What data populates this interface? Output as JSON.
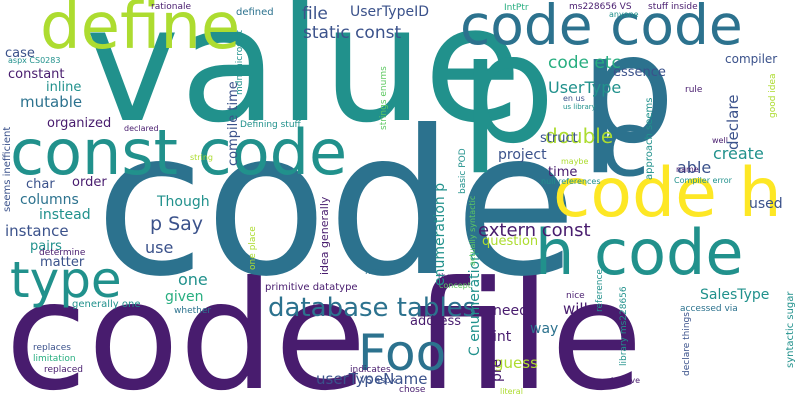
{
  "palette": {
    "dark_purple": "#481c6e",
    "indigo": "#3b528b",
    "blue": "#2c728e",
    "teal": "#21918c",
    "green": "#28ae80",
    "light_green": "#5ec962",
    "yellow_green": "#addc30",
    "yellow": "#fde725"
  },
  "words": [
    {
      "text": "code file",
      "color": "#481c6e",
      "orient": "h"
    },
    {
      "text": "code",
      "color": "#2c728e",
      "orient": "h"
    },
    {
      "text": "value",
      "color": "#21918c",
      "orient": "h"
    },
    {
      "text": "p",
      "color": "#21918c",
      "orient": "h"
    },
    {
      "text": "p",
      "color": "#2c728e",
      "orient": "h"
    },
    {
      "text": "const code",
      "color": "#21918c",
      "orient": "h"
    },
    {
      "text": "code code",
      "color": "#2c728e",
      "orient": "h"
    },
    {
      "text": "define",
      "color": "#addc30",
      "orient": "h"
    },
    {
      "text": "c",
      "color": "#2c728e",
      "orient": "h"
    },
    {
      "text": "code h",
      "color": "#fde725",
      "orient": "h"
    },
    {
      "text": "h code",
      "color": "#21918c",
      "orient": "h"
    },
    {
      "text": "type",
      "color": "#21918c",
      "orient": "h"
    },
    {
      "text": "Foo",
      "color": "#2c728e",
      "orient": "h"
    },
    {
      "text": "database tables",
      "color": "#2c728e",
      "orient": "h"
    },
    {
      "text": "extern const",
      "color": "#481c6e",
      "orient": "h"
    },
    {
      "text": "static const",
      "color": "#3b528b",
      "orient": "h"
    },
    {
      "text": "file",
      "color": "#3b528b",
      "orient": "h"
    },
    {
      "text": "UserTypeID",
      "color": "#3b528b",
      "orient": "h"
    },
    {
      "text": "code etc",
      "color": "#28ae80",
      "orient": "h"
    },
    {
      "text": "UserType",
      "color": "#21918c",
      "orient": "h"
    },
    {
      "text": "double",
      "color": "#addc30",
      "orient": "h"
    },
    {
      "text": "create",
      "color": "#21918c",
      "orient": "h"
    },
    {
      "text": "able",
      "color": "#3b528b",
      "orient": "h"
    },
    {
      "text": "p Say",
      "color": "#3b528b",
      "orient": "h"
    },
    {
      "text": "Though",
      "color": "#21918c",
      "orient": "h"
    },
    {
      "text": "use",
      "color": "#3b528b",
      "orient": "h"
    },
    {
      "text": "one",
      "color": "#21918c",
      "orient": "h"
    },
    {
      "text": "given",
      "color": "#28ae80",
      "orient": "h"
    },
    {
      "text": "SalesType",
      "color": "#21918c",
      "orient": "h"
    },
    {
      "text": "userTypeName",
      "color": "#3b528b",
      "orient": "h"
    },
    {
      "text": "address",
      "color": "#481c6e",
      "orient": "h"
    },
    {
      "text": "primitive datatype",
      "color": "#481c6e",
      "orient": "h"
    },
    {
      "text": "need",
      "color": "#481c6e",
      "orient": "h"
    },
    {
      "text": "int",
      "color": "#481c6e",
      "orient": "h"
    },
    {
      "text": "will",
      "color": "#481c6e",
      "orient": "h"
    },
    {
      "text": "way",
      "color": "#2c728e",
      "orient": "h"
    },
    {
      "text": "guess",
      "color": "#addc30",
      "orient": "h"
    },
    {
      "text": "question",
      "color": "#addc30",
      "orient": "h"
    },
    {
      "text": "project",
      "color": "#3b528b",
      "orient": "h"
    },
    {
      "text": "time",
      "color": "#481c6e",
      "orient": "h"
    },
    {
      "text": "struct",
      "color": "#3b528b",
      "orient": "h"
    },
    {
      "text": "mutable",
      "color": "#2c728e",
      "orient": "h"
    },
    {
      "text": "constant",
      "color": "#481c6e",
      "orient": "h"
    },
    {
      "text": "inline",
      "color": "#21918c",
      "orient": "h"
    },
    {
      "text": "organized",
      "color": "#481c6e",
      "orient": "h"
    },
    {
      "text": "char",
      "color": "#3b528b",
      "orient": "h"
    },
    {
      "text": "order",
      "color": "#481c6e",
      "orient": "h"
    },
    {
      "text": "columns",
      "color": "#2c728e",
      "orient": "h"
    },
    {
      "text": "instead",
      "color": "#21918c",
      "orient": "h"
    },
    {
      "text": "instance",
      "color": "#3b528b",
      "orient": "h"
    },
    {
      "text": "pairs",
      "color": "#21918c",
      "orient": "h"
    },
    {
      "text": "matter",
      "color": "#3b528b",
      "orient": "h"
    },
    {
      "text": "case",
      "color": "#3b528b",
      "orient": "h"
    },
    {
      "text": "used",
      "color": "#3b528b",
      "orient": "h"
    },
    {
      "text": "essence",
      "color": "#3b528b",
      "orient": "h"
    },
    {
      "text": "compiler",
      "color": "#3b528b",
      "orient": "h"
    },
    {
      "text": "determine",
      "color": "#481c6e",
      "orient": "h"
    },
    {
      "text": "generally one",
      "color": "#21918c",
      "orient": "h"
    },
    {
      "text": "whether",
      "color": "#2c728e",
      "orient": "h"
    },
    {
      "text": "replaces",
      "color": "#3b528b",
      "orient": "h"
    },
    {
      "text": "limitation",
      "color": "#28ae80",
      "orient": "h"
    },
    {
      "text": "replaced",
      "color": "#481c6e",
      "orient": "h"
    },
    {
      "text": "indicates",
      "color": "#481c6e",
      "orient": "h"
    },
    {
      "text": "VS aspx",
      "color": "#3b528b",
      "orient": "h"
    },
    {
      "text": "chose",
      "color": "#481c6e",
      "orient": "h"
    },
    {
      "text": "literal",
      "color": "#addc30",
      "orient": "h"
    },
    {
      "text": "believe",
      "color": "#481c6e",
      "orient": "h"
    },
    {
      "text": "nice",
      "color": "#481c6e",
      "orient": "h"
    },
    {
      "text": "concept",
      "color": "#5ec962",
      "orient": "h"
    },
    {
      "text": "theory",
      "color": "#481c6e",
      "orient": "h"
    },
    {
      "text": "href",
      "color": "#2c728e",
      "orient": "h"
    },
    {
      "text": "accessed via",
      "color": "#2c728e",
      "orient": "h"
    },
    {
      "text": "rationale",
      "color": "#481c6e",
      "orient": "h"
    },
    {
      "text": "defined",
      "color": "#2c728e",
      "orient": "h"
    },
    {
      "text": "IntPtr",
      "color": "#28ae80",
      "orient": "h"
    },
    {
      "text": "ms228656 VS",
      "color": "#481c6e",
      "orient": "h"
    },
    {
      "text": "stuff inside",
      "color": "#481c6e",
      "orient": "h"
    },
    {
      "text": "anyone",
      "color": "#21918c",
      "orient": "h"
    },
    {
      "text": "aspx CS0283",
      "color": "#21918c",
      "orient": "h"
    },
    {
      "text": "Defining stuff",
      "color": "#21918c",
      "orient": "h"
    },
    {
      "text": "declared",
      "color": "#481c6e",
      "orient": "h"
    },
    {
      "text": "string",
      "color": "#addc30",
      "orient": "h"
    },
    {
      "text": "en us",
      "color": "#3b528b",
      "orient": "h"
    },
    {
      "text": "us library",
      "color": "#21918c",
      "orient": "h"
    },
    {
      "text": "null references",
      "color": "#21918c",
      "orient": "h"
    },
    {
      "text": "maybe",
      "color": "#addc30",
      "orient": "h"
    },
    {
      "text": "Compiler error",
      "color": "#21918c",
      "orient": "h"
    },
    {
      "text": "name",
      "color": "#481c6e",
      "orient": "h"
    },
    {
      "text": "well",
      "color": "#481c6e",
      "orient": "h"
    },
    {
      "text": "rule",
      "color": "#481c6e",
      "orient": "h"
    },
    {
      "text": "library ms228656",
      "color": "#21918c",
      "orient": "v"
    },
    {
      "text": "reference",
      "color": "#21918c",
      "orient": "v"
    },
    {
      "text": "declare things",
      "color": "#3b528b",
      "orient": "v"
    },
    {
      "text": "syntactic sugar",
      "color": "#21918c",
      "orient": "v"
    },
    {
      "text": "good idea",
      "color": "#addc30",
      "orient": "v"
    },
    {
      "text": "declare",
      "color": "#3b528b",
      "orient": "v"
    },
    {
      "text": "approach seems",
      "color": "#21918c",
      "orient": "v"
    },
    {
      "text": "C enumeration",
      "color": "#21918c",
      "orient": "v"
    },
    {
      "text": "pre",
      "color": "#481c6e",
      "orient": "v"
    },
    {
      "text": "enumeration p",
      "color": "#21918c",
      "orient": "v"
    },
    {
      "text": "actually syntactic",
      "color": "#5ec962",
      "orient": "v"
    },
    {
      "text": "basic POD",
      "color": "#21918c",
      "orient": "v"
    },
    {
      "text": "idea generally",
      "color": "#481c6e",
      "orient": "v"
    },
    {
      "text": "one place",
      "color": "#addc30",
      "orient": "v"
    },
    {
      "text": "compile time",
      "color": "#3b528b",
      "orient": "v"
    },
    {
      "text": "mdn microsoft",
      "color": "#21918c",
      "orient": "v"
    },
    {
      "text": "strings enums",
      "color": "#5ec962",
      "orient": "v"
    },
    {
      "text": "seems inefficient",
      "color": "#3b528b",
      "orient": "v"
    }
  ]
}
